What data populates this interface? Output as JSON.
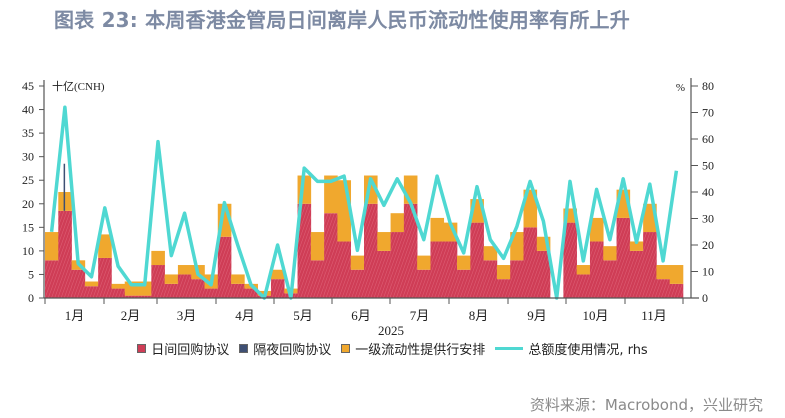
{
  "title": "图表 23: 本周香港金管局日间离岸人民币流动性使用率有所上升",
  "source": "资料来源：Macrobond，兴业研究",
  "colors": {
    "intraday_repo": "#cf3d56",
    "overnight_repo": "#3e4f73",
    "liquidity_facility": "#f0a82e",
    "usage_rhs": "#4fd8d2",
    "title": "#7d8aa3"
  },
  "chart_data": {
    "type": "bar",
    "stacked": true,
    "title": "本周香港金管局日间离岸人民币流动性使用率有所上升",
    "xlabel": "2025",
    "ylabel_left": "十亿(CNH)",
    "ylabel_right": "%",
    "ylim_left": [
      0,
      45
    ],
    "ylim_right": [
      0,
      80
    ],
    "yticks_left": [
      0,
      5,
      10,
      15,
      20,
      25,
      30,
      35,
      40,
      45
    ],
    "yticks_right": [
      0,
      10,
      20,
      30,
      40,
      50,
      60,
      70,
      80
    ],
    "x_tick_labels": [
      "1月",
      "2月",
      "3月",
      "4月",
      "5月",
      "6月",
      "7月",
      "8月",
      "9月",
      "10月",
      "11月"
    ],
    "legend": [
      "日间回购协议",
      "隔夜回购协议",
      "一级流动性提供行安排",
      "总额度使用情况, rhs"
    ],
    "legend_position": "bottom",
    "grid": false,
    "period_x": [
      "Jan-01",
      "Jan-08",
      "Jan-15",
      "Jan-22",
      "Jan-29",
      "Feb-05",
      "Feb-12",
      "Feb-19",
      "Feb-26",
      "Mar-05",
      "Mar-12",
      "Mar-19",
      "Mar-26",
      "Apr-02",
      "Apr-09",
      "Apr-16",
      "Apr-23",
      "Apr-30",
      "May-07",
      "May-14",
      "May-21",
      "May-28",
      "Jun-04",
      "Jun-11",
      "Jun-18",
      "Jun-25",
      "Jul-02",
      "Jul-09",
      "Jul-16",
      "Jul-23",
      "Jul-30",
      "Aug-06",
      "Aug-13",
      "Aug-20",
      "Aug-27",
      "Sep-03",
      "Sep-10",
      "Sep-17",
      "Sep-24",
      "Oct-01",
      "Oct-08",
      "Oct-15",
      "Oct-22",
      "Oct-29",
      "Nov-05",
      "Nov-12",
      "Nov-19",
      "Nov-26"
    ],
    "series": [
      {
        "name": "日间回购协议",
        "values": [
          8,
          18.5,
          6,
          2.5,
          8.5,
          2,
          0.5,
          0.5,
          7,
          3,
          5,
          4,
          2,
          13,
          3,
          2,
          0.5,
          4,
          1,
          20,
          8,
          18,
          12,
          6,
          20,
          10,
          14,
          20,
          6,
          12,
          12,
          6,
          16,
          8,
          4,
          8,
          15,
          10,
          0,
          16,
          5,
          12,
          8,
          17,
          10,
          14,
          4,
          3
        ]
      },
      {
        "name": "隔夜回购协议",
        "values": [
          0,
          10,
          0,
          0,
          0,
          0,
          0,
          0,
          0,
          0,
          0,
          0,
          0,
          0,
          0,
          0,
          0,
          0,
          0,
          0,
          0,
          0,
          0,
          0,
          0,
          0,
          0,
          0,
          0,
          0,
          0,
          0,
          0,
          0,
          0,
          0,
          0,
          0,
          0,
          0,
          0,
          0,
          0,
          0,
          0,
          0,
          0,
          0
        ]
      },
      {
        "name": "一级流动性提供行安排",
        "values": [
          6,
          4,
          2,
          1,
          5,
          1,
          3,
          3,
          3,
          2,
          2,
          3,
          3,
          7,
          2,
          1,
          1,
          2,
          1,
          6,
          6,
          8,
          13,
          3,
          6,
          4,
          4,
          6,
          3,
          5,
          4,
          3,
          5,
          3,
          3,
          6,
          8,
          3,
          0,
          3,
          2,
          5,
          3,
          6,
          2,
          6,
          3,
          4
        ]
      },
      {
        "name": "总额度使用情况, rhs",
        "values": [
          25,
          72,
          13,
          8,
          34,
          12,
          5,
          5,
          59,
          16,
          32,
          9,
          5,
          36,
          20,
          5,
          0,
          20,
          0,
          49,
          44,
          44,
          46,
          18,
          45,
          35,
          45,
          36,
          22,
          46,
          28,
          17,
          42,
          22,
          15,
          27,
          44,
          29,
          0,
          44,
          14,
          41,
          22,
          45,
          21,
          43,
          14,
          48
        ]
      }
    ]
  },
  "legend": {
    "items": [
      {
        "label": "日间回购协议"
      },
      {
        "label": "隔夜回购协议"
      },
      {
        "label": "一级流动性提供行安排"
      },
      {
        "label": "总额度使用情况, rhs"
      }
    ]
  },
  "axes": {
    "left_unit": "十亿(CNH)",
    "right_unit": "%",
    "year": "2025"
  }
}
